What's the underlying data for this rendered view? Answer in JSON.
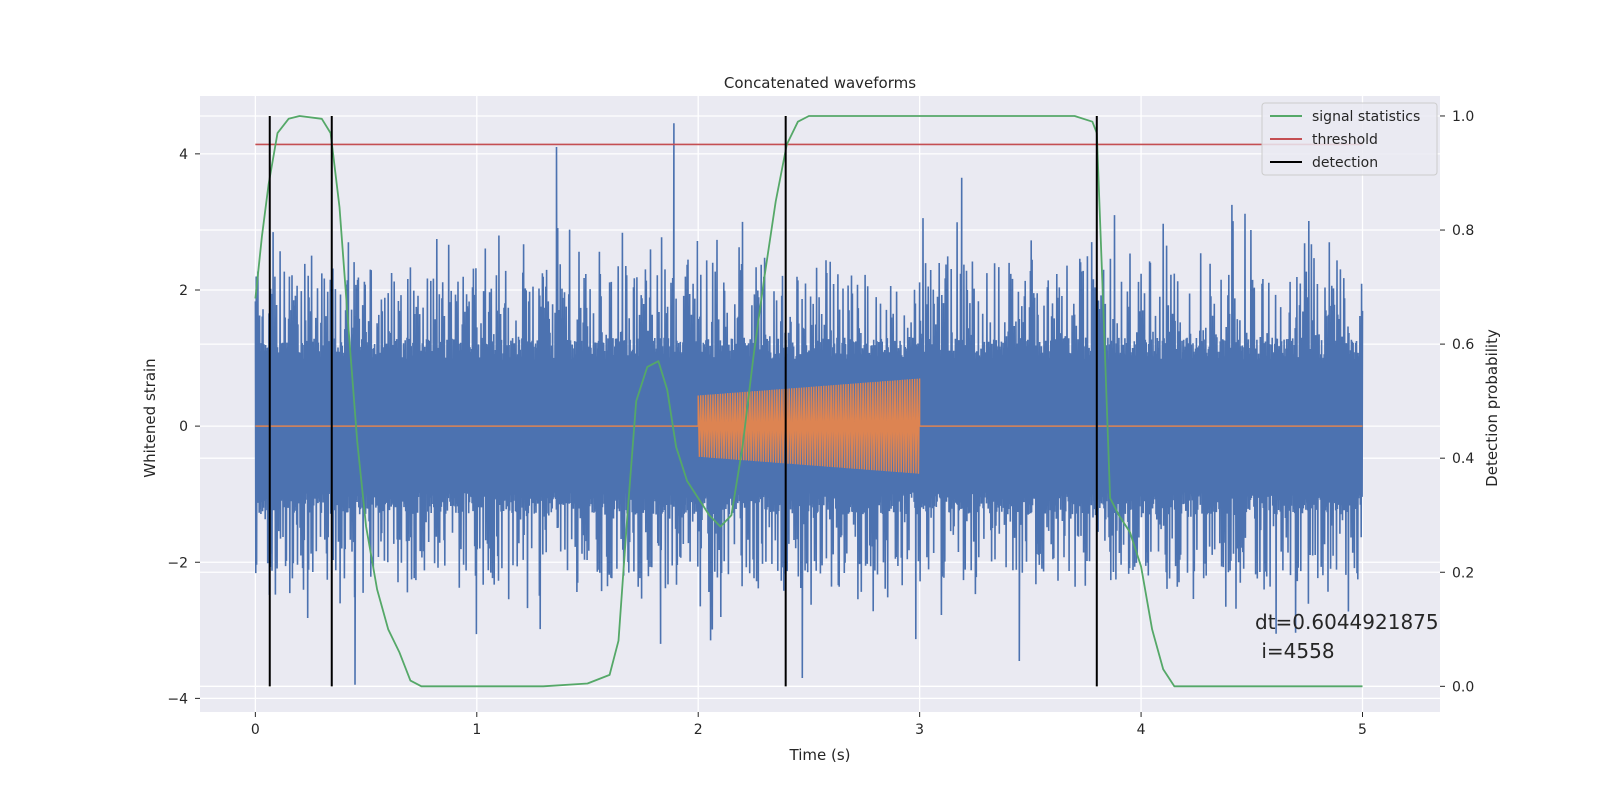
{
  "chart_data": {
    "type": "line",
    "title": "Concatenated waveforms",
    "xlabel": "Time (s)",
    "ylabel": "Whitened strain",
    "y2label": "Detection probability",
    "xlim": [
      -0.25,
      5.35
    ],
    "ylim": [
      -4.2,
      4.85
    ],
    "y2lim": [
      -0.045,
      1.035
    ],
    "xticks": [
      0,
      1,
      2,
      3,
      4,
      5
    ],
    "yticks": [
      -4,
      -2,
      0,
      2,
      4
    ],
    "y2ticks": [
      0.0,
      0.2,
      0.4,
      0.6,
      0.8,
      1.0
    ],
    "grid": true,
    "legend_position": "top-right",
    "annotation": [
      "dt=0.6044921875",
      " i=4558"
    ],
    "colors": {
      "strain": "#4c72b0",
      "template": "#dd8452",
      "signal_statistics": "#55a868",
      "threshold": "#c44e52",
      "detection": "#000000",
      "background": "#eaeaf2"
    },
    "series": [
      {
        "name": "",
        "axis": "left",
        "color": "#4c72b0",
        "description": "whitened strain noise",
        "x_range": [
          0,
          5
        ],
        "envelope": [
          1.3,
          -1.3
        ],
        "peaks": [
          {
            "x": 0.08,
            "y": 2.85
          },
          {
            "x": 0.45,
            "y": -3.8
          },
          {
            "x": 0.42,
            "y": 2.7
          },
          {
            "x": 1.36,
            "y": 4.1
          },
          {
            "x": 1.83,
            "y": -3.2
          },
          {
            "x": 1.89,
            "y": 4.45
          },
          {
            "x": 2.47,
            "y": -3.7
          },
          {
            "x": 3.19,
            "y": 3.65
          },
          {
            "x": 3.45,
            "y": -3.45
          },
          {
            "x": 3.88,
            "y": 3.1
          },
          {
            "x": 4.41,
            "y": 3.25
          },
          {
            "x": 2.2,
            "y": 3.0
          },
          {
            "x": 1.1,
            "y": 2.8
          },
          {
            "x": 4.85,
            "y": 2.7
          }
        ]
      },
      {
        "name": "",
        "axis": "left",
        "color": "#dd8452",
        "description": "injected chirp template",
        "x_range": [
          0,
          5
        ],
        "burst": {
          "start": 2.0,
          "end": 3.0,
          "amp_start": 0.45,
          "amp_end": 0.7
        }
      },
      {
        "name": "signal statistics",
        "axis": "right",
        "color": "#55a868",
        "x": [
          0,
          0.03,
          0.06,
          0.1,
          0.15,
          0.2,
          0.3,
          0.34,
          0.38,
          0.42,
          0.46,
          0.5,
          0.55,
          0.6,
          0.65,
          0.7,
          0.75,
          1.0,
          1.3,
          1.5,
          1.6,
          1.64,
          1.68,
          1.72,
          1.77,
          1.82,
          1.86,
          1.9,
          1.95,
          2.0,
          2.05,
          2.1,
          2.15,
          2.2,
          2.25,
          2.3,
          2.35,
          2.4,
          2.45,
          2.5,
          3.0,
          3.7,
          3.78,
          3.8,
          3.83,
          3.86,
          3.9,
          3.95,
          4.0,
          4.05,
          4.1,
          4.15,
          4.3,
          5.0
        ],
        "values": [
          0.68,
          0.79,
          0.88,
          0.97,
          0.995,
          1.0,
          0.995,
          0.97,
          0.84,
          0.63,
          0.43,
          0.28,
          0.17,
          0.1,
          0.06,
          0.01,
          0.0,
          0.0,
          0.0,
          0.005,
          0.02,
          0.08,
          0.3,
          0.5,
          0.56,
          0.57,
          0.52,
          0.42,
          0.36,
          0.33,
          0.3,
          0.28,
          0.3,
          0.42,
          0.58,
          0.72,
          0.85,
          0.95,
          0.99,
          1.0,
          1.0,
          1.0,
          0.99,
          0.97,
          0.66,
          0.33,
          0.3,
          0.27,
          0.21,
          0.1,
          0.03,
          0.0,
          0.0,
          0.0
        ]
      },
      {
        "name": "threshold",
        "axis": "right",
        "color": "#c44e52",
        "x": [
          0,
          5
        ],
        "values": [
          0.95,
          0.95
        ]
      },
      {
        "name": "detection",
        "axis": "right",
        "color": "#000000",
        "type": "vlines",
        "x": [
          0.065,
          0.345,
          2.395,
          3.8
        ],
        "y_range": [
          0.0,
          1.0
        ]
      }
    ]
  }
}
